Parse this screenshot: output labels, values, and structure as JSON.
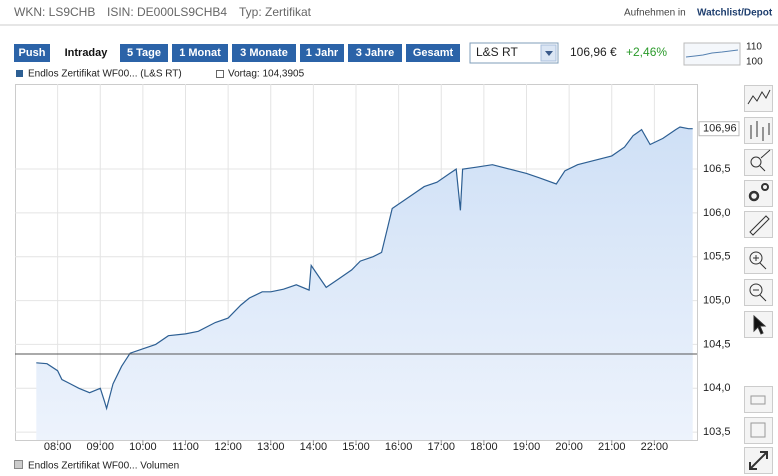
{
  "header": {
    "wkn": "WKN: LS9CHB",
    "isin": "ISIN: DE000LS9CHB4",
    "typ": "Typ: Zertifikat",
    "add_prefix": "Aufnehmen in",
    "add_link": "Watchlist/Depot"
  },
  "tabs": [
    "Push",
    "Intraday",
    "5 Tage",
    "1 Monat",
    "3 Monate",
    "1 Jahr",
    "3 Jahre",
    "Gesamt"
  ],
  "exchange": "L&S RT",
  "quote": {
    "price": "106,96 €",
    "change": "+2,46%"
  },
  "mini": {
    "yticks": [
      110,
      100
    ]
  },
  "footer": {
    "volume_legend": "Endlos Zertifikat WF00... Volumen"
  },
  "chart_data": {
    "type": "area",
    "series": [
      {
        "name": "Endlos Zertifikat WF00... (L&S RT)",
        "color": "#2d5f93",
        "values": [
          104.29,
          104.28,
          104.2,
          104.1,
          104.05,
          104.0,
          103.95,
          104.0,
          103.85,
          103.77,
          104.05,
          104.25,
          104.4,
          104.45,
          104.5,
          104.6,
          104.62,
          104.65,
          104.75,
          104.8,
          104.95,
          105.03,
          105.1,
          105.1,
          105.13,
          105.18,
          105.12,
          105.4,
          105.15,
          105.25,
          105.35,
          105.45,
          105.5,
          105.55,
          105.85,
          106.05,
          106.1,
          106.2,
          106.3,
          106.35,
          106.45,
          106.5,
          106.03,
          106.5,
          106.52,
          106.55,
          106.5,
          106.45,
          106.4,
          106.33,
          106.48,
          106.55,
          106.6,
          106.65,
          106.75,
          106.88,
          106.95,
          106.78,
          106.85,
          106.95,
          106.98,
          106.96,
          106.96
        ]
      }
    ],
    "x": [
      7.5,
      7.75,
      8.0,
      8.1,
      8.3,
      8.5,
      8.75,
      9.0,
      9.1,
      9.15,
      9.3,
      9.5,
      9.7,
      10.0,
      10.3,
      10.6,
      11.0,
      11.3,
      11.7,
      12.0,
      12.3,
      12.5,
      12.8,
      13.0,
      13.3,
      13.6,
      13.9,
      13.95,
      14.3,
      14.6,
      14.9,
      15.1,
      15.4,
      15.6,
      15.75,
      15.85,
      16.0,
      16.3,
      16.6,
      16.9,
      17.2,
      17.35,
      17.45,
      17.5,
      17.8,
      18.2,
      18.6,
      19.0,
      19.3,
      19.7,
      19.9,
      20.2,
      20.6,
      21.0,
      21.3,
      21.5,
      21.7,
      21.9,
      22.2,
      22.5,
      22.6,
      22.8,
      22.9
    ],
    "reference": {
      "value": 104.3905,
      "label": "Vortag: 104,3905",
      "color": "#555555"
    },
    "last": {
      "value": 106.96,
      "label": "106,96"
    },
    "xlim": [
      7,
      23
    ],
    "xticks": [
      {
        "value": 8,
        "label": "08:00"
      },
      {
        "value": 9,
        "label": "09:00"
      },
      {
        "value": 10,
        "label": "10:00"
      },
      {
        "value": 11,
        "label": "11:00"
      },
      {
        "value": 12,
        "label": "12:00"
      },
      {
        "value": 13,
        "label": "13:00"
      },
      {
        "value": 14,
        "label": "14:00"
      },
      {
        "value": 15,
        "label": "15:00"
      },
      {
        "value": 16,
        "label": "16:00"
      },
      {
        "value": 17,
        "label": "17:00"
      },
      {
        "value": 18,
        "label": "18:00"
      },
      {
        "value": 19,
        "label": "19:00"
      },
      {
        "value": 20,
        "label": "20:00"
      },
      {
        "value": 21,
        "label": "21:00"
      },
      {
        "value": 22,
        "label": "22:00"
      }
    ],
    "ylim": [
      103.41,
      107.47
    ],
    "yticks": [
      {
        "value": 103.5,
        "label": "103,5"
      },
      {
        "value": 104,
        "label": "104,0"
      },
      {
        "value": 104.5,
        "label": "104,5"
      },
      {
        "value": 105,
        "label": "105,0"
      },
      {
        "value": 105.5,
        "label": "105,5"
      },
      {
        "value": 106,
        "label": "106,0"
      },
      {
        "value": 106.5,
        "label": "106,5"
      }
    ],
    "grid": true
  }
}
